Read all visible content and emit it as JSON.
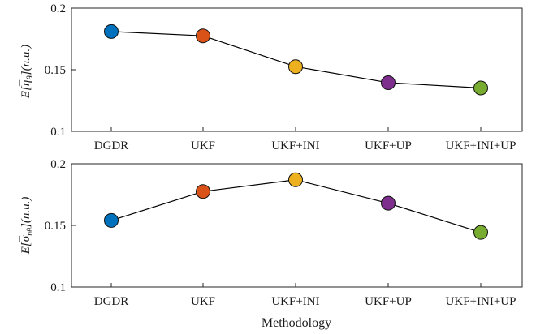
{
  "chart_data": [
    {
      "type": "line",
      "categories": [
        "DGDR",
        "UKF",
        "UKF+INI",
        "UKF+UP",
        "UKF+INI+UP"
      ],
      "values": [
        0.181,
        0.1775,
        0.1525,
        0.1395,
        0.1352
      ],
      "point_colors": [
        "#0072BD",
        "#D95319",
        "#EDB120",
        "#7E2F8E",
        "#77AC30"
      ],
      "ylim": [
        0.1,
        0.2
      ],
      "yticks": [
        "0.1",
        "0.15",
        "0.2"
      ],
      "ylabel": "E[η̄θ](n.u.)",
      "xlabel": "",
      "grid": false,
      "legend": "none"
    },
    {
      "type": "line",
      "categories": [
        "DGDR",
        "UKF",
        "UKF+INI",
        "UKF+UP",
        "UKF+INI+UP"
      ],
      "values": [
        0.154,
        0.1775,
        0.187,
        0.168,
        0.1443
      ],
      "point_colors": [
        "#0072BD",
        "#D95319",
        "#EDB120",
        "#7E2F8E",
        "#77AC30"
      ],
      "ylim": [
        0.1,
        0.2
      ],
      "yticks": [
        "0.1",
        "0.15",
        "0.2"
      ],
      "ylabel": "E[σ̄ηθ](n.u.)",
      "xlabel": "Methodology",
      "grid": false,
      "legend": "none"
    }
  ]
}
